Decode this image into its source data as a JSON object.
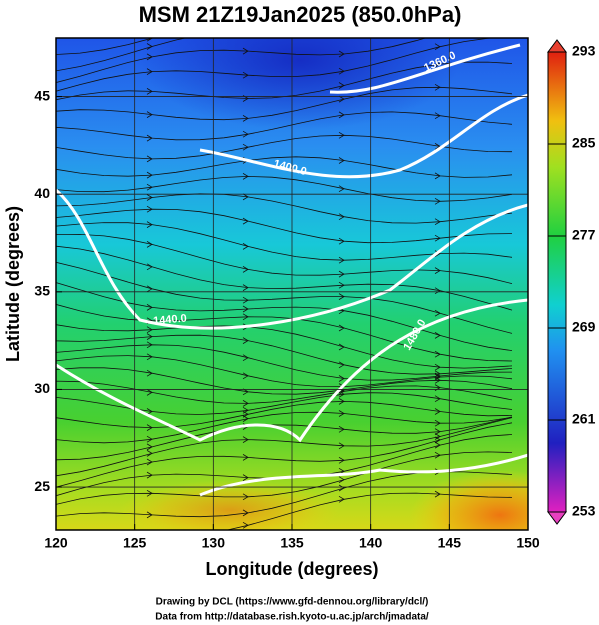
{
  "map": {
    "title": "MSM 21Z19Jan2025 (850.0hPa)",
    "xaxis": {
      "label": "Longitude (degrees)",
      "lim": [
        120,
        150
      ],
      "ticks": [
        120,
        125,
        130,
        135,
        140,
        145,
        150
      ]
    },
    "yaxis": {
      "label": "Latitude  (degrees)",
      "lim": [
        22.8,
        48
      ],
      "ticks": [
        25,
        30,
        35,
        40,
        45
      ]
    },
    "colorbar": {
      "lim": [
        253,
        293
      ],
      "ticks": [
        253,
        261,
        269,
        277,
        285,
        293
      ]
    },
    "contour_labels": [
      "1360.0",
      "1400.0",
      "1440.0",
      "1480.0"
    ],
    "credits": [
      "Drawing by DCL (https://www.gfd-dennou.org/library/dcl/)",
      "Data from http://database.rish.kyoto-u.ac.jp/arch/jmadata/"
    ]
  }
}
